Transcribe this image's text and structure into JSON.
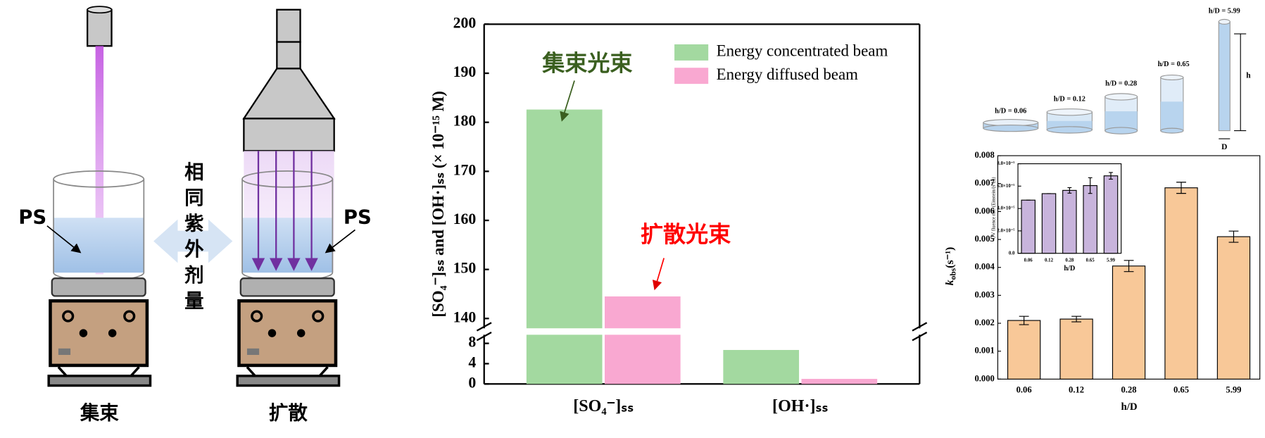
{
  "schematic": {
    "left_label": "集束",
    "right_label": "扩散",
    "ps_left": "PS",
    "ps_right": "PS",
    "middle_text": "相同紫外剂量",
    "cylinder_labels": [
      "h/D = 0.06",
      "h/D = 0.12",
      "h/D = 0.28",
      "h/D = 0.65",
      "h/D = 5.99"
    ],
    "height_label": "h",
    "diameter_label": "D"
  },
  "chart_data": [
    {
      "type": "bar",
      "y_label": "[SO₄⁻]ₛₛ and [OH·]ₛₛ (× 10⁻¹⁵ M)",
      "categories": [
        "[SO₄⁻]ₛₛ",
        "[OH·]ₛₛ"
      ],
      "series": [
        {
          "name": "Energy concentrated beam",
          "color": "#a3d9a0",
          "values": [
            182.6,
            6.7
          ]
        },
        {
          "name": "Energy diffused beam",
          "color": "#f9a8d1",
          "values": [
            144.5,
            1.0
          ]
        }
      ],
      "ylim_lower": [
        0,
        9.7
      ],
      "yticks_lower": [
        0,
        4,
        8
      ],
      "ylim_upper": [
        138,
        200
      ],
      "yticks_upper": [
        140,
        150,
        160,
        170,
        180,
        190,
        200
      ],
      "annotations": [
        {
          "text": "集束光束",
          "color": "#3a5f1f"
        },
        {
          "text": "扩散光束",
          "color": "#ff0000"
        }
      ],
      "legend": "upper right"
    },
    {
      "type": "bar",
      "x_label": "h/D",
      "y_label": {
        "symbol": "k",
        "subscript": "obs",
        "unit": "(s⁻¹)"
      },
      "categories": [
        "0.06",
        "0.12",
        "0.28",
        "0.65",
        "5.99"
      ],
      "values": [
        0.0021,
        0.00215,
        0.00405,
        0.00685,
        0.0051
      ],
      "errors": [
        0.00015,
        0.0001,
        0.0002,
        0.0002,
        0.0002
      ],
      "color": "#f8c898",
      "ylim": [
        0,
        0.008
      ],
      "yticks": [
        {
          "value": 0,
          "label": "0.000"
        },
        {
          "value": 0.001,
          "label": "0.001"
        },
        {
          "value": 0.002,
          "label": "0.002"
        },
        {
          "value": 0.003,
          "label": "0.003"
        },
        {
          "value": 0.004,
          "label": "0.004"
        },
        {
          "value": 0.005,
          "label": "0.005"
        },
        {
          "value": 0.006,
          "label": "0.006"
        },
        {
          "value": 0.007,
          "label": "0.007"
        },
        {
          "value": 0.008,
          "label": "0.008"
        }
      ],
      "inset": {
        "type": "bar",
        "x_label": "h/D",
        "y_label": "UV fluence rate (Einstein/(s·L))",
        "categories": [
          "0.06",
          "0.12",
          "0.28",
          "0.65",
          "5.99"
        ],
        "values": [
          4.75e-05,
          5.33e-05,
          5.62e-05,
          6.05e-05,
          6.92e-05
        ],
        "errors": [
          0,
          0,
          2.5e-06,
          7e-06,
          3e-06
        ],
        "color": "#c8b4dc",
        "ylim": [
          0,
          8e-05
        ],
        "yticks": [
          {
            "value": 0,
            "label": "0.0"
          },
          {
            "value": 2e-05,
            "label": "2.0×10⁻⁵"
          },
          {
            "value": 4e-05,
            "label": "4.0×10⁻⁵"
          },
          {
            "value": 6e-05,
            "label": "6.0×10⁻⁵"
          },
          {
            "value": 8e-05,
            "label": "8.0×10⁻⁵"
          }
        ]
      }
    }
  ]
}
